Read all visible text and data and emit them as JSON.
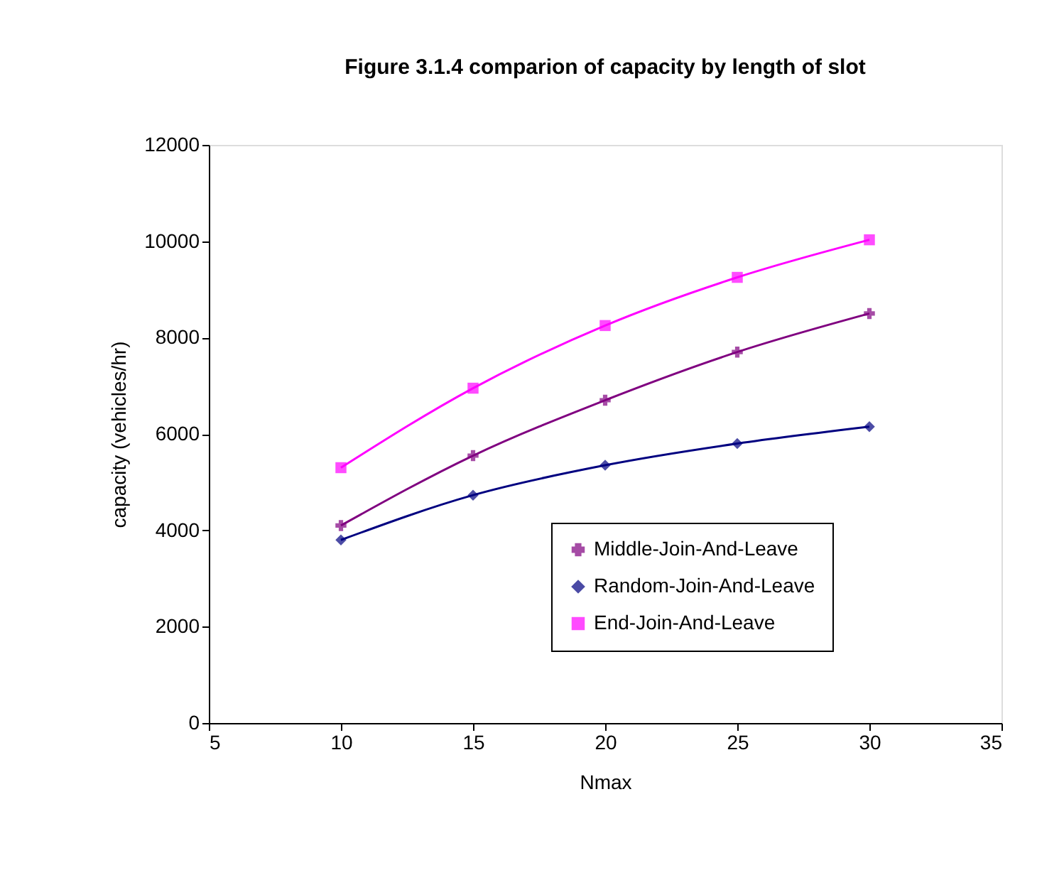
{
  "chart_data": {
    "type": "line",
    "title": "Figure 3.1.4 comparion of capacity by length of slot",
    "xlabel": "Nmax",
    "ylabel": "capacity (vehicles/hr)",
    "x": [
      10,
      15,
      20,
      25,
      30
    ],
    "series": [
      {
        "name": "Middle-Join-And-Leave",
        "color": "#800080",
        "marker": "cross",
        "values": [
          4100,
          5550,
          6700,
          7700,
          8500
        ]
      },
      {
        "name": "Random-Join-And-Leave",
        "color": "#000080",
        "marker": "diamond",
        "values": [
          3800,
          4730,
          5350,
          5800,
          6150
        ]
      },
      {
        "name": "End-Join-And-Leave",
        "color": "#ff00ff",
        "marker": "square",
        "values": [
          5300,
          6950,
          8250,
          9250,
          10030
        ]
      }
    ],
    "xlim": [
      5,
      35
    ],
    "xticks": [
      5,
      10,
      15,
      20,
      25,
      30,
      35
    ],
    "ylim": [
      0,
      12000
    ],
    "yticks": [
      0,
      2000,
      4000,
      6000,
      8000,
      10000,
      12000
    ],
    "grid": false,
    "legend": "bottom right",
    "line_style": "solid"
  }
}
